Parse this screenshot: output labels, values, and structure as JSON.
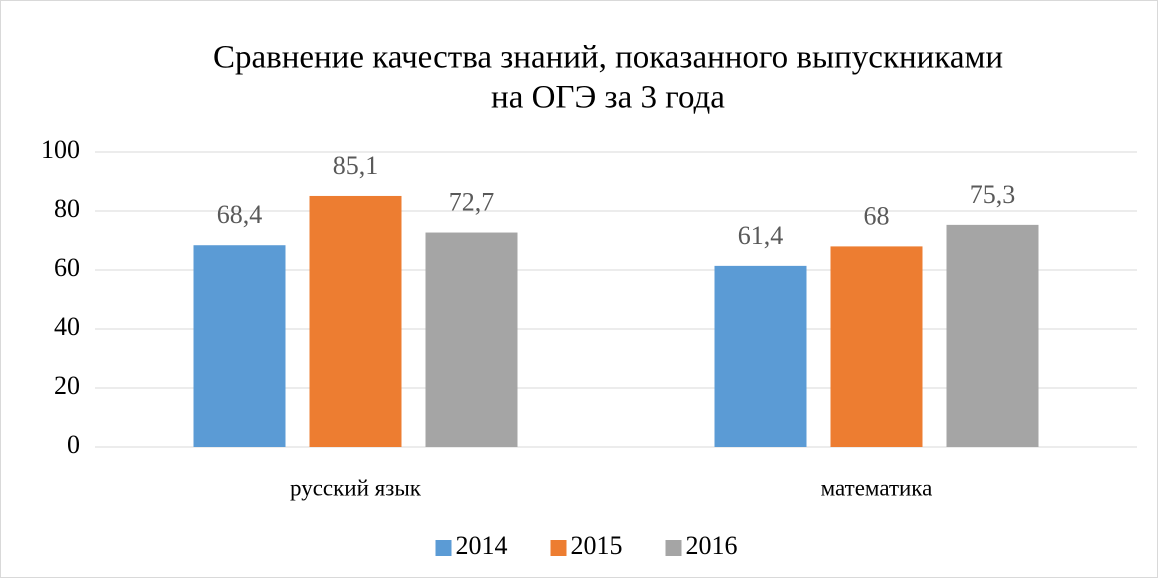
{
  "chart_data": {
    "type": "bar",
    "title": [
      "Сравнение качества знаний, показанного выпускниками",
      "на ОГЭ за 3 года"
    ],
    "categories": [
      "русский язык",
      "математика"
    ],
    "series": [
      {
        "name": "2014",
        "color": "#5b9bd5",
        "values": [
          68.4,
          61.4
        ],
        "value_labels": [
          "68,4",
          "61,4"
        ]
      },
      {
        "name": "2015",
        "color": "#ed7d31",
        "values": [
          85.1,
          68
        ],
        "value_labels": [
          "85,1",
          "68"
        ]
      },
      {
        "name": "2016",
        "color": "#a5a5a5",
        "values": [
          72.7,
          75.3
        ],
        "value_labels": [
          "72,7",
          "75,3"
        ]
      }
    ],
    "ylim": [
      0,
      100
    ],
    "yticks": [
      0,
      20,
      40,
      60,
      80,
      100
    ],
    "grid": true,
    "legend": "bottom"
  }
}
